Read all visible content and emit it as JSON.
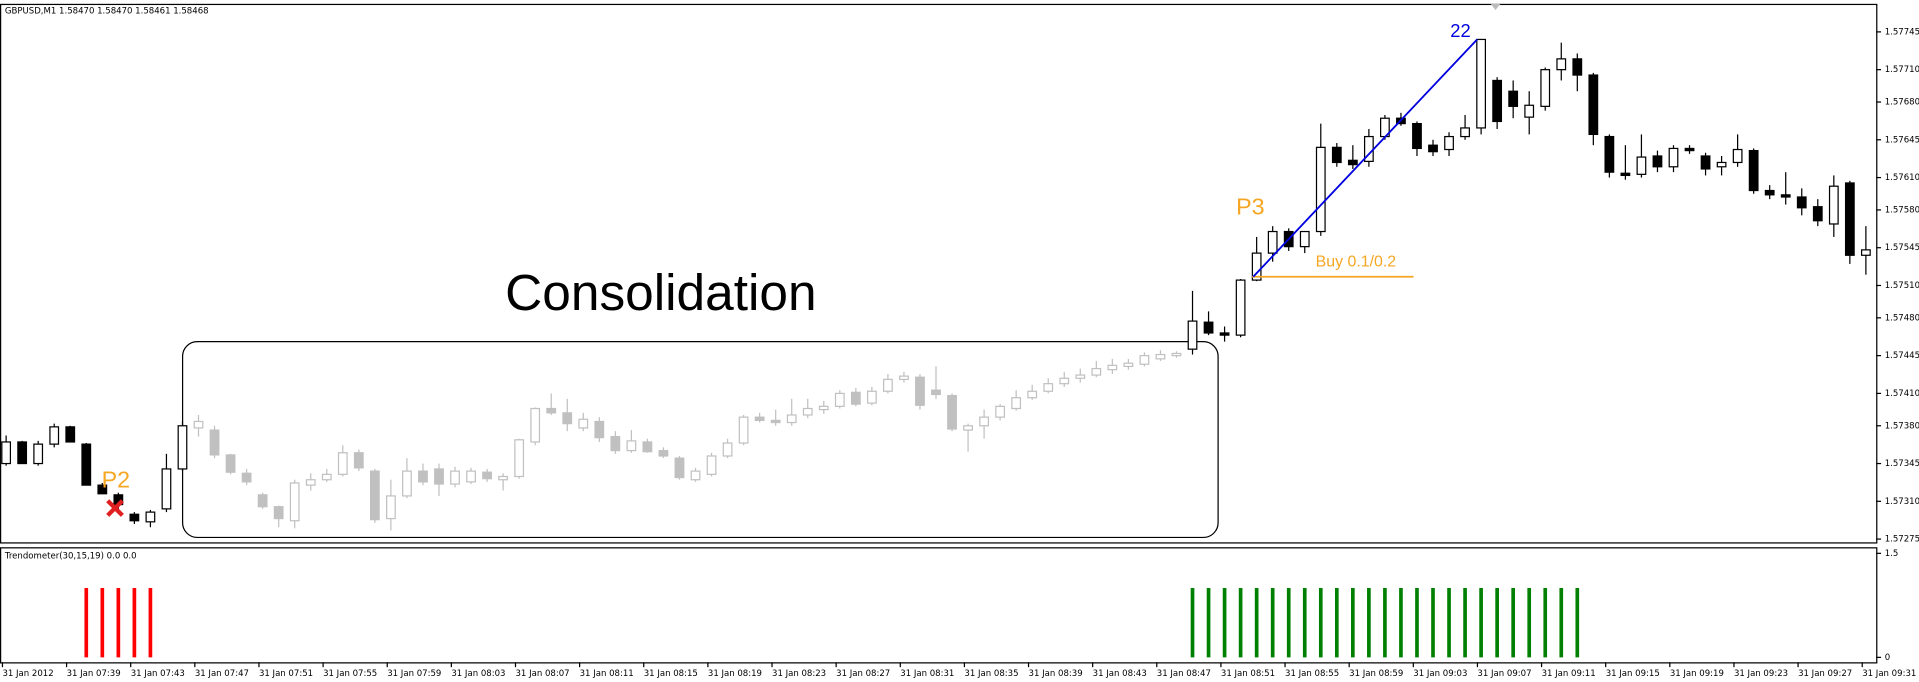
{
  "chart_data": [
    {
      "type": "candlestick",
      "title": "GBPUSD,M1  1.58470 1.58470 1.58461 1.58468",
      "categories": [
        "31 Jan 2012",
        null,
        null,
        null,
        "31 Jan 07:39",
        null,
        null,
        null,
        "31 Jan 07:43",
        null,
        null,
        null,
        "31 Jan 07:47",
        null,
        null,
        null,
        "31 Jan 07:51",
        null,
        null,
        null,
        "31 Jan 07:55",
        null,
        null,
        null,
        "31 Jan 07:59",
        null,
        null,
        null,
        "31 Jan 08:03",
        null,
        null,
        null,
        "31 Jan 08:07",
        null,
        null,
        null,
        "31 Jan 08:11",
        null,
        null,
        null,
        "31 Jan 08:15",
        null,
        null,
        null,
        "31 Jan 08:19",
        null,
        null,
        null,
        "31 Jan 08:23",
        null,
        null,
        null,
        "31 Jan 08:27",
        null,
        null,
        null,
        "31 Jan 08:31",
        null,
        null,
        null,
        "31 Jan 08:35",
        null,
        null,
        null,
        "31 Jan 08:39",
        null,
        null,
        null,
        "31 Jan 08:43",
        null,
        null,
        null,
        "31 Jan 08:47",
        null,
        null,
        null,
        "31 Jan 08:51",
        null,
        null,
        null,
        "31 Jan 08:55",
        null,
        null,
        null,
        "31 Jan 08:59",
        null,
        null,
        null,
        "31 Jan 09:03",
        null,
        null,
        null,
        "31 Jan 09:07",
        null,
        null,
        null,
        "31 Jan 09:11",
        null,
        null,
        null,
        "31 Jan 09:15",
        null,
        null,
        null,
        "31 Jan 09:19",
        null,
        null,
        null,
        "31 Jan 09:23",
        null,
        null,
        null,
        "31 Jan 09:27",
        null,
        null,
        null,
        "31 Jan 09:31"
      ],
      "open": [
        1.57345,
        1.57365,
        1.57345,
        1.57363,
        1.57379,
        1.57363,
        1.57325,
        1.57316,
        1.57298,
        1.57291,
        1.57303,
        1.5734,
        1.57378,
        1.57376,
        1.57353,
        1.57336,
        1.57316,
        1.57305,
        1.57292,
        1.57325,
        1.5733,
        1.57335,
        1.57355,
        1.57338,
        1.57294,
        1.57315,
        1.57338,
        1.5734,
        1.57326,
        1.57328,
        1.57337,
        1.5733,
        1.57333,
        1.57365,
        1.57396,
        1.57392,
        1.57378,
        1.57384,
        1.5737,
        1.57357,
        1.57365,
        1.57357,
        1.5735,
        1.5733,
        1.57335,
        1.57352,
        1.57364,
        1.57388,
        1.57385,
        1.57383,
        1.5739,
        1.57395,
        1.57398,
        1.57411,
        1.57401,
        1.57412,
        1.57423,
        1.57425,
        1.57413,
        1.57408,
        1.57376,
        1.5738,
        1.57388,
        1.57396,
        1.57406,
        1.57412,
        1.57419,
        1.57424,
        1.57427,
        1.57432,
        1.57435,
        1.57437,
        1.57442,
        1.57445,
        1.57451,
        1.57476,
        1.57466,
        1.57464,
        1.57515,
        1.5754,
        1.5756,
        1.57546,
        1.5756,
        1.57638,
        1.57626,
        1.57625,
        1.57648,
        1.57665,
        1.5766,
        1.5764,
        1.57636,
        1.57648,
        1.57656,
        1.577,
        1.5769,
        1.57666,
        1.57676,
        1.5771,
        1.5772,
        1.57705,
        1.57648,
        1.57614,
        1.57613,
        1.5763,
        1.5762,
        1.57637,
        1.5763,
        1.5762,
        1.57624,
        1.57635,
        1.57598,
        1.57594,
        1.57592,
        1.57583,
        1.57567,
        1.57605,
        1.57538
      ],
      "high": [
        1.57371,
        1.57366,
        1.57366,
        1.57382,
        1.5738,
        1.57364,
        1.57327,
        1.57318,
        1.573,
        1.57302,
        1.57354,
        1.57384,
        1.5739,
        1.5738,
        1.57354,
        1.5734,
        1.57318,
        1.57306,
        1.5733,
        1.57336,
        1.5734,
        1.57362,
        1.57358,
        1.5734,
        1.5733,
        1.5735,
        1.57345,
        1.57345,
        1.57342,
        1.57341,
        1.5734,
        1.57336,
        1.57368,
        1.57397,
        1.5741,
        1.57405,
        1.57392,
        1.57388,
        1.57375,
        1.57376,
        1.57368,
        1.5736,
        1.57352,
        1.57341,
        1.57355,
        1.57368,
        1.5739,
        1.57392,
        1.57395,
        1.57405,
        1.57405,
        1.57403,
        1.57413,
        1.57415,
        1.57416,
        1.57428,
        1.5743,
        1.57428,
        1.57435,
        1.5741,
        1.57382,
        1.57395,
        1.574,
        1.57413,
        1.57418,
        1.57424,
        1.5743,
        1.57433,
        1.5744,
        1.57442,
        1.57442,
        1.57448,
        1.5745,
        1.57449,
        1.57505,
        1.57486,
        1.57472,
        1.57516,
        1.57555,
        1.57565,
        1.57563,
        1.5756,
        1.5766,
        1.57642,
        1.5764,
        1.57655,
        1.57668,
        1.5767,
        1.57662,
        1.57645,
        1.57652,
        1.57668,
        1.57738,
        1.57703,
        1.577,
        1.5769,
        1.57712,
        1.57735,
        1.57725,
        1.57707,
        1.5765,
        1.5764,
        1.5765,
        1.57635,
        1.5764,
        1.5764,
        1.57633,
        1.5763,
        1.5765,
        1.57637,
        1.57603,
        1.57615,
        1.576,
        1.5759,
        1.57612,
        1.57607,
        1.57565
      ],
      "low": [
        1.57343,
        1.57345,
        1.57343,
        1.5736,
        1.57365,
        1.57325,
        1.57317,
        1.57303,
        1.57289,
        1.57286,
        1.573,
        1.57338,
        1.5737,
        1.5735,
        1.57335,
        1.57325,
        1.57303,
        1.57286,
        1.57285,
        1.5732,
        1.57328,
        1.57333,
        1.57338,
        1.5729,
        1.57283,
        1.57313,
        1.57325,
        1.57315,
        1.57323,
        1.57326,
        1.57328,
        1.5732,
        1.57331,
        1.57362,
        1.5739,
        1.57375,
        1.57375,
        1.57365,
        1.57354,
        1.57355,
        1.57355,
        1.5735,
        1.5733,
        1.57328,
        1.57333,
        1.5735,
        1.57362,
        1.57383,
        1.5738,
        1.5738,
        1.57387,
        1.57391,
        1.57396,
        1.57398,
        1.57399,
        1.5741,
        1.5742,
        1.57395,
        1.57405,
        1.57375,
        1.57356,
        1.57368,
        1.57385,
        1.57394,
        1.57404,
        1.5741,
        1.57416,
        1.5742,
        1.57425,
        1.57428,
        1.57432,
        1.57435,
        1.5744,
        1.57443,
        1.57446,
        1.57464,
        1.57458,
        1.57462,
        1.57514,
        1.57532,
        1.57542,
        1.5754,
        1.57556,
        1.5762,
        1.57618,
        1.5762,
        1.57645,
        1.57658,
        1.5763,
        1.5763,
        1.5763,
        1.57645,
        1.5765,
        1.57655,
        1.57665,
        1.5765,
        1.57672,
        1.577,
        1.5769,
        1.5764,
        1.5761,
        1.57608,
        1.5761,
        1.57615,
        1.57615,
        1.57632,
        1.57612,
        1.57612,
        1.5762,
        1.57595,
        1.5759,
        1.57585,
        1.57575,
        1.57565,
        1.57555,
        1.5753,
        1.5752
      ],
      "close": [
        1.57365,
        1.57345,
        1.57363,
        1.57379,
        1.57365,
        1.57325,
        1.57317,
        1.57307,
        1.57292,
        1.573,
        1.5734,
        1.5738,
        1.57384,
        1.57353,
        1.57337,
        1.57328,
        1.57305,
        1.57294,
        1.57327,
        1.5733,
        1.57335,
        1.57355,
        1.57341,
        1.57293,
        1.57315,
        1.57338,
        1.57328,
        1.57326,
        1.57338,
        1.57338,
        1.57331,
        1.57333,
        1.57367,
        1.57396,
        1.57392,
        1.57382,
        1.57386,
        1.57369,
        1.57357,
        1.57366,
        1.57356,
        1.57352,
        1.57332,
        1.57338,
        1.57352,
        1.57364,
        1.57388,
        1.57385,
        1.57383,
        1.5739,
        1.57396,
        1.57398,
        1.5741,
        1.574,
        1.57412,
        1.57423,
        1.57426,
        1.57399,
        1.57409,
        1.57377,
        1.5738,
        1.57388,
        1.57398,
        1.57406,
        1.57412,
        1.57419,
        1.57424,
        1.57427,
        1.57433,
        1.57436,
        1.57438,
        1.57445,
        1.57446,
        1.57447,
        1.57477,
        1.57466,
        1.57464,
        1.57515,
        1.5754,
        1.5756,
        1.57546,
        1.5756,
        1.57638,
        1.57624,
        1.57622,
        1.57648,
        1.57665,
        1.5766,
        1.57637,
        1.57634,
        1.57648,
        1.57656,
        1.57738,
        1.57662,
        1.57676,
        1.57677,
        1.5771,
        1.5772,
        1.57705,
        1.5765,
        1.57615,
        1.57612,
        1.57629,
        1.5762,
        1.57637,
        1.57635,
        1.57618,
        1.57624,
        1.57636,
        1.57598,
        1.57594,
        1.57592,
        1.57582,
        1.5757,
        1.57602,
        1.57538,
        1.57543
      ],
      "up_color": "#ffffff",
      "down_color": "#000000",
      "ylim": [
        1.57272,
        1.57771
      ],
      "yticks": [
        1.57275,
        {
          "value": 1.5731,
          "label": "1.57310"
        },
        1.57345,
        {
          "value": 1.5738,
          "label": "1.57380"
        },
        {
          "value": 1.5741,
          "label": "1.57410"
        },
        1.57445,
        {
          "value": 1.5748,
          "label": "1.57480"
        },
        {
          "value": 1.5751,
          "label": "1.57510"
        },
        1.57545,
        {
          "value": 1.5758,
          "label": "1.57580"
        },
        {
          "value": 1.5761,
          "label": "1.57610"
        },
        1.57645,
        {
          "value": 1.5768,
          "label": "1.57680"
        },
        {
          "value": 1.5771,
          "label": "1.57710"
        },
        1.57745
      ],
      "regions": [
        {
          "label": "Consolidation",
          "from": 12,
          "to": 73,
          "color": "#c0c0c0"
        }
      ],
      "annotations": [
        "P2",
        "P3",
        "Buy 0.1/0.2",
        "22"
      ]
    },
    {
      "type": "bar",
      "title": "Trendometer(30,15,19) 0.0 0.0",
      "series": [
        {
          "color": "#ff0000",
          "values": [
            0,
            0,
            0,
            0,
            0,
            1,
            1,
            1,
            1,
            1,
            0,
            0,
            0,
            0,
            0,
            0,
            0,
            0,
            0,
            0,
            0,
            0,
            0,
            0,
            0,
            0,
            0,
            0,
            0,
            0,
            0,
            0,
            0,
            0,
            0,
            0,
            0,
            0,
            0,
            0,
            0,
            0,
            0,
            0,
            0,
            0,
            0,
            0,
            0,
            0,
            0,
            0,
            0,
            0,
            0,
            0,
            0,
            0,
            0,
            0,
            0,
            0,
            0,
            0,
            0,
            0,
            0,
            0,
            0,
            0,
            0,
            0,
            0,
            0,
            0,
            0,
            0,
            0,
            0,
            0,
            0,
            0,
            0,
            0,
            0,
            0,
            0,
            0,
            0,
            0,
            0,
            0,
            0,
            0,
            0,
            0,
            0,
            0,
            0,
            0,
            0,
            0,
            0,
            0,
            0,
            0,
            0,
            0,
            0,
            0,
            0,
            0,
            0,
            0,
            0,
            0,
            0
          ]
        },
        {
          "color": "#008000",
          "values": [
            0,
            0,
            0,
            0,
            0,
            0,
            0,
            0,
            0,
            0,
            0,
            0,
            0,
            0,
            0,
            0,
            0,
            0,
            0,
            0,
            0,
            0,
            0,
            0,
            0,
            0,
            0,
            0,
            0,
            0,
            0,
            0,
            0,
            0,
            0,
            0,
            0,
            0,
            0,
            0,
            0,
            0,
            0,
            0,
            0,
            0,
            0,
            0,
            0,
            0,
            0,
            0,
            0,
            0,
            0,
            0,
            0,
            0,
            0,
            0,
            0,
            0,
            0,
            0,
            0,
            0,
            0,
            0,
            0,
            0,
            0,
            0,
            0,
            0,
            1,
            1,
            1,
            1,
            1,
            1,
            1,
            1,
            1,
            1,
            1,
            1,
            1,
            1,
            1,
            1,
            1,
            1,
            1,
            1,
            1,
            1,
            1,
            1,
            1,
            0,
            0,
            0,
            0,
            0,
            0,
            0,
            0,
            0,
            0,
            0,
            0,
            0,
            0,
            0,
            0,
            0,
            0
          ]
        }
      ],
      "ylim": [
        0,
        1.5
      ],
      "yticks": [
        0,
        1.5
      ]
    }
  ]
}
